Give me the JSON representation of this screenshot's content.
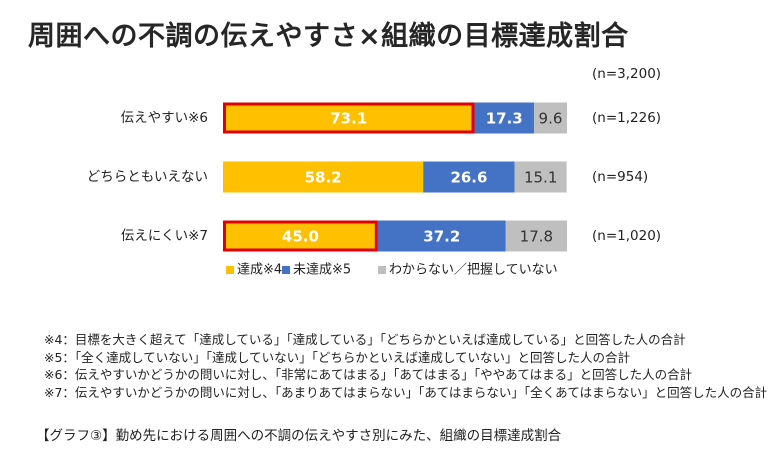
{
  "chart_data": {
    "type": "bar",
    "orientation": "horizontal",
    "stacked": true,
    "title": "周囲への不調の伝えやすさ×組織の目標達成割合",
    "total_n": "(n=3,200)",
    "categories": [
      "伝えやすい※6",
      "どちらともいえない",
      "伝えにくい※7"
    ],
    "n_labels": [
      "(n=1,226)",
      "(n=954)",
      "(n=1,020)"
    ],
    "series": [
      {
        "name": "達成※4",
        "values": [
          73.1,
          58.2,
          45.0
        ],
        "labels": [
          "73.1",
          "58.2",
          "45.0"
        ],
        "color": "#FFC000"
      },
      {
        "name": "未達成※5",
        "values": [
          17.3,
          26.6,
          37.2
        ],
        "labels": [
          "17.3",
          "26.6",
          "37.2"
        ],
        "color": "#4472C4"
      },
      {
        "name": "わからない／把握していない",
        "values": [
          9.6,
          15.1,
          17.8
        ],
        "labels": [
          "9.6",
          "15.1",
          "17.8"
        ],
        "color": "#BFBFBF"
      }
    ],
    "highlighted": [
      {
        "category": "伝えやすい※6",
        "series": "達成※4"
      },
      {
        "category": "伝えにくい※7",
        "series": "達成※4"
      }
    ],
    "highlight_color": "#E00000",
    "xlim": [
      0,
      100
    ],
    "legend_position": "bottom"
  },
  "notes": [
    "※4：目標を大きく超えて「達成している」「達成している」「どちらかといえば達成している」と回答した人の合計",
    "※5：「全く達成していない」「達成していない」「どちらかといえば達成していない」と回答した人の合計",
    "※6：伝えやすいかどうかの問いに対し、「非常にあてはまる」「あてはまる」「ややあてはまる」と回答した人の合計",
    "※7：伝えやすいかどうかの問いに対し、「あまりあてはまらない」「あてはまらない」「全くあてはまらない」と回答した人の合計"
  ],
  "caption": "【グラフ③】勤め先における周囲への不調の伝えやすさ別にみた、組織の目標達成割合"
}
